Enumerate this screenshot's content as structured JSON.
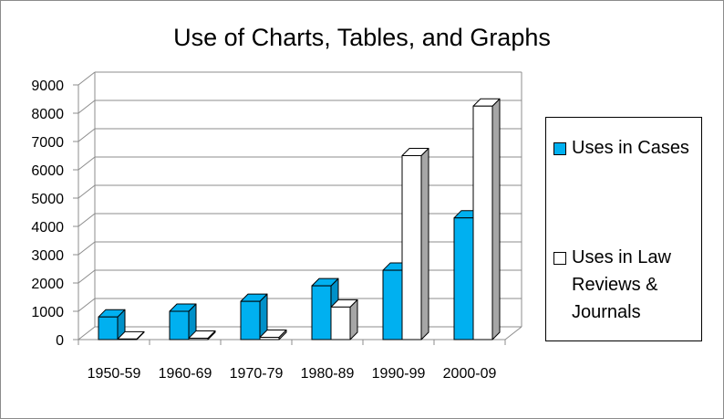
{
  "chart_data": {
    "type": "bar",
    "title": "Use of Charts, Tables, and Graphs",
    "categories": [
      "1950-59",
      "1960-69",
      "1970-79",
      "1980-89",
      "1990-99",
      "2000-09"
    ],
    "series": [
      {
        "name": "Uses in Cases",
        "values": [
          800,
          1000,
          1350,
          1900,
          2450,
          4300
        ],
        "color": "#00b0f0"
      },
      {
        "name": "Uses in Law Reviews & Journals",
        "values": [
          20,
          50,
          80,
          1150,
          6500,
          8250
        ],
        "color": "#ffffff"
      }
    ],
    "ylim": [
      0,
      9000
    ],
    "yticks": [
      0,
      1000,
      2000,
      3000,
      4000,
      5000,
      6000,
      7000,
      8000,
      9000
    ],
    "grid": true,
    "legend": "right",
    "colors": {
      "cases": "#00b0f0",
      "journals": "#ffffff",
      "wall": "#808080"
    }
  }
}
